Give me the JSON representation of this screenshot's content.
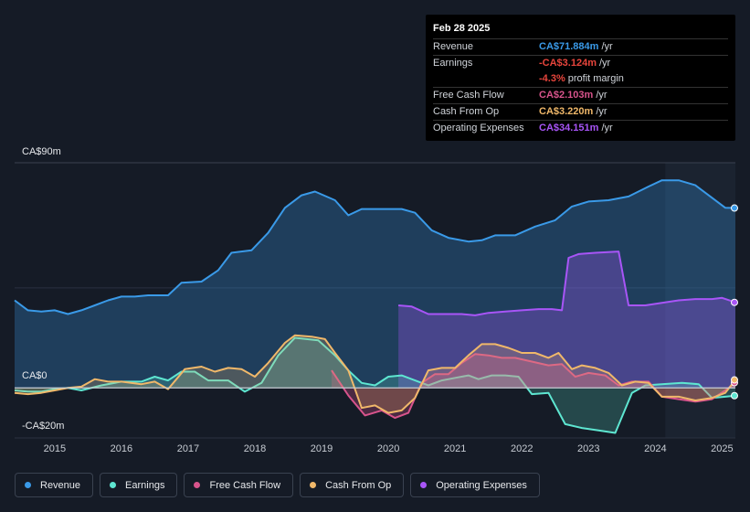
{
  "tooltip": {
    "date": "Feb 28 2025",
    "rows": [
      {
        "label": "Revenue",
        "value": "CA$71.884m",
        "unit": "/yr",
        "color": "#3a9ae8"
      },
      {
        "label": "Earnings",
        "value": "-CA$3.124m",
        "unit": "/yr",
        "color": "#e8453c"
      },
      {
        "label": "",
        "value": "-4.3%",
        "unit": "profit margin",
        "color": "#e8453c"
      },
      {
        "label": "Free Cash Flow",
        "value": "CA$2.103m",
        "unit": "/yr",
        "color": "#d8548c"
      },
      {
        "label": "Cash From Op",
        "value": "CA$3.220m",
        "unit": "/yr",
        "color": "#f0b86a"
      },
      {
        "label": "Operating Expenses",
        "value": "CA$34.151m",
        "unit": "/yr",
        "color": "#a855f7"
      }
    ]
  },
  "chart_data": {
    "type": "area",
    "y_axis_labels": {
      "top": "CA$90m",
      "zero": "CA$0",
      "bottom": "-CA$20m"
    },
    "ylim": [
      -20,
      90
    ],
    "xlim": [
      2014.4,
      2025.2
    ],
    "x_ticks": [
      "2015",
      "2016",
      "2017",
      "2018",
      "2019",
      "2020",
      "2021",
      "2022",
      "2023",
      "2024",
      "2025"
    ],
    "forecast_start": 2024.15,
    "series": [
      {
        "name": "Revenue",
        "color": "#3a9ae8",
        "points": [
          [
            2014.4,
            35
          ],
          [
            2014.6,
            31
          ],
          [
            2014.8,
            30.5
          ],
          [
            2015.0,
            31
          ],
          [
            2015.2,
            29.5
          ],
          [
            2015.4,
            31
          ],
          [
            2015.6,
            33
          ],
          [
            2015.8,
            35
          ],
          [
            2016.0,
            36.5
          ],
          [
            2016.2,
            36.5
          ],
          [
            2016.4,
            37
          ],
          [
            2016.7,
            37
          ],
          [
            2016.9,
            42
          ],
          [
            2017.2,
            42.5
          ],
          [
            2017.45,
            47
          ],
          [
            2017.65,
            54
          ],
          [
            2017.95,
            55
          ],
          [
            2018.2,
            62
          ],
          [
            2018.45,
            72
          ],
          [
            2018.7,
            77
          ],
          [
            2018.9,
            78.5
          ],
          [
            2019.2,
            75
          ],
          [
            2019.4,
            69
          ],
          [
            2019.6,
            71.5
          ],
          [
            2019.9,
            71.5
          ],
          [
            2020.2,
            71.5
          ],
          [
            2020.4,
            70
          ],
          [
            2020.65,
            63
          ],
          [
            2020.9,
            60
          ],
          [
            2021.2,
            58.5
          ],
          [
            2021.4,
            59
          ],
          [
            2021.6,
            61
          ],
          [
            2021.9,
            61
          ],
          [
            2022.2,
            64.5
          ],
          [
            2022.5,
            67
          ],
          [
            2022.75,
            72.5
          ],
          [
            2023.0,
            74.5
          ],
          [
            2023.3,
            75
          ],
          [
            2023.6,
            76.5
          ],
          [
            2023.9,
            80.5
          ],
          [
            2024.1,
            83
          ],
          [
            2024.35,
            83
          ],
          [
            2024.6,
            81
          ],
          [
            2024.85,
            76
          ],
          [
            2025.05,
            72
          ],
          [
            2025.2,
            71.9
          ]
        ]
      },
      {
        "name": "Earnings",
        "color": "#5ee6d1",
        "points": [
          [
            2014.4,
            -1
          ],
          [
            2014.6,
            -1.5
          ],
          [
            2014.8,
            -1.5
          ],
          [
            2015.0,
            -0.5
          ],
          [
            2015.2,
            0
          ],
          [
            2015.4,
            -1
          ],
          [
            2015.7,
            1
          ],
          [
            2016.0,
            2.5
          ],
          [
            2016.3,
            2.5
          ],
          [
            2016.5,
            4.5
          ],
          [
            2016.7,
            3
          ],
          [
            2016.9,
            6.5
          ],
          [
            2017.1,
            6.5
          ],
          [
            2017.3,
            3
          ],
          [
            2017.6,
            3
          ],
          [
            2017.85,
            -1.5
          ],
          [
            2018.1,
            2
          ],
          [
            2018.35,
            13
          ],
          [
            2018.6,
            20
          ],
          [
            2018.95,
            19
          ],
          [
            2019.2,
            13
          ],
          [
            2019.4,
            7
          ],
          [
            2019.6,
            2
          ],
          [
            2019.8,
            1
          ],
          [
            2020.0,
            4.5
          ],
          [
            2020.2,
            5
          ],
          [
            2020.4,
            3
          ],
          [
            2020.6,
            1
          ],
          [
            2020.8,
            3
          ],
          [
            2021.0,
            4
          ],
          [
            2021.2,
            5
          ],
          [
            2021.35,
            3.5
          ],
          [
            2021.55,
            5
          ],
          [
            2021.75,
            5
          ],
          [
            2021.95,
            4.5
          ],
          [
            2022.15,
            -2.5
          ],
          [
            2022.4,
            -2
          ],
          [
            2022.65,
            -14.5
          ],
          [
            2022.9,
            -16
          ],
          [
            2023.15,
            -17
          ],
          [
            2023.4,
            -18
          ],
          [
            2023.65,
            -2
          ],
          [
            2023.85,
            1
          ],
          [
            2024.1,
            1.5
          ],
          [
            2024.4,
            2
          ],
          [
            2024.65,
            1.5
          ],
          [
            2024.85,
            -4
          ],
          [
            2025.05,
            -3.5
          ],
          [
            2025.2,
            -3.1
          ]
        ]
      },
      {
        "name": "Free Cash Flow",
        "color": "#d8548c",
        "points": [
          [
            2019.15,
            7
          ],
          [
            2019.4,
            -3
          ],
          [
            2019.65,
            -11
          ],
          [
            2019.9,
            -9
          ],
          [
            2020.1,
            -12
          ],
          [
            2020.3,
            -10
          ],
          [
            2020.5,
            2
          ],
          [
            2020.7,
            5.5
          ],
          [
            2020.9,
            5.5
          ],
          [
            2021.1,
            10
          ],
          [
            2021.3,
            13.5
          ],
          [
            2021.5,
            13
          ],
          [
            2021.7,
            12
          ],
          [
            2021.9,
            12
          ],
          [
            2022.15,
            10.5
          ],
          [
            2022.4,
            9
          ],
          [
            2022.6,
            9.5
          ],
          [
            2022.8,
            4.5
          ],
          [
            2023.0,
            6
          ],
          [
            2023.25,
            5
          ],
          [
            2023.45,
            1
          ],
          [
            2023.65,
            2.5
          ],
          [
            2023.9,
            2.5
          ],
          [
            2024.1,
            -3.5
          ],
          [
            2024.35,
            -4.5
          ],
          [
            2024.6,
            -5.5
          ],
          [
            2024.85,
            -4.5
          ],
          [
            2025.05,
            -1
          ],
          [
            2025.2,
            2.1
          ]
        ]
      },
      {
        "name": "Cash From Op",
        "color": "#f0b86a",
        "points": [
          [
            2014.4,
            -2
          ],
          [
            2014.6,
            -2.5
          ],
          [
            2014.8,
            -2
          ],
          [
            2015.0,
            -1
          ],
          [
            2015.2,
            0
          ],
          [
            2015.4,
            0.5
          ],
          [
            2015.6,
            3.5
          ],
          [
            2015.8,
            2.5
          ],
          [
            2016.0,
            2.5
          ],
          [
            2016.3,
            1.5
          ],
          [
            2016.5,
            2.5
          ],
          [
            2016.7,
            -0.5
          ],
          [
            2016.95,
            7.5
          ],
          [
            2017.2,
            8.5
          ],
          [
            2017.4,
            6.5
          ],
          [
            2017.6,
            8
          ],
          [
            2017.8,
            7.5
          ],
          [
            2018.0,
            4.5
          ],
          [
            2018.2,
            10
          ],
          [
            2018.45,
            18
          ],
          [
            2018.6,
            21
          ],
          [
            2018.85,
            20.5
          ],
          [
            2019.05,
            19.5
          ],
          [
            2019.2,
            14
          ],
          [
            2019.4,
            7
          ],
          [
            2019.6,
            -8
          ],
          [
            2019.8,
            -7
          ],
          [
            2020.0,
            -10
          ],
          [
            2020.2,
            -9
          ],
          [
            2020.4,
            -4
          ],
          [
            2020.6,
            7
          ],
          [
            2020.8,
            8
          ],
          [
            2021.0,
            8
          ],
          [
            2021.2,
            13
          ],
          [
            2021.4,
            17.5
          ],
          [
            2021.6,
            17.5
          ],
          [
            2021.8,
            16
          ],
          [
            2022.0,
            14
          ],
          [
            2022.2,
            14
          ],
          [
            2022.4,
            12
          ],
          [
            2022.55,
            14
          ],
          [
            2022.75,
            7.5
          ],
          [
            2022.9,
            9
          ],
          [
            2023.1,
            8
          ],
          [
            2023.3,
            6
          ],
          [
            2023.5,
            1
          ],
          [
            2023.7,
            2.5
          ],
          [
            2023.9,
            2
          ],
          [
            2024.1,
            -3.5
          ],
          [
            2024.35,
            -3.5
          ],
          [
            2024.6,
            -5
          ],
          [
            2024.85,
            -4
          ],
          [
            2025.05,
            -2
          ],
          [
            2025.2,
            3.2
          ]
        ]
      },
      {
        "name": "Operating Expenses",
        "color": "#a855f7",
        "points": [
          [
            2020.15,
            33
          ],
          [
            2020.35,
            32.5
          ],
          [
            2020.6,
            29.5
          ],
          [
            2020.85,
            29.5
          ],
          [
            2021.1,
            29.5
          ],
          [
            2021.3,
            29
          ],
          [
            2021.5,
            30
          ],
          [
            2021.75,
            30.5
          ],
          [
            2022.0,
            31
          ],
          [
            2022.25,
            31.5
          ],
          [
            2022.45,
            31.5
          ],
          [
            2022.6,
            31
          ],
          [
            2022.7,
            52
          ],
          [
            2022.85,
            53.5
          ],
          [
            2023.1,
            54
          ],
          [
            2023.45,
            54.5
          ],
          [
            2023.6,
            33
          ],
          [
            2023.85,
            33
          ],
          [
            2024.1,
            34
          ],
          [
            2024.35,
            35
          ],
          [
            2024.6,
            35.5
          ],
          [
            2024.85,
            35.5
          ],
          [
            2025.0,
            36
          ],
          [
            2025.2,
            34.2
          ]
        ]
      }
    ]
  },
  "legend": [
    {
      "label": "Revenue",
      "color": "#3a9ae8"
    },
    {
      "label": "Earnings",
      "color": "#5ee6d1"
    },
    {
      "label": "Free Cash Flow",
      "color": "#d8548c"
    },
    {
      "label": "Cash From Op",
      "color": "#f0b86a"
    },
    {
      "label": "Operating Expenses",
      "color": "#a855f7"
    }
  ]
}
